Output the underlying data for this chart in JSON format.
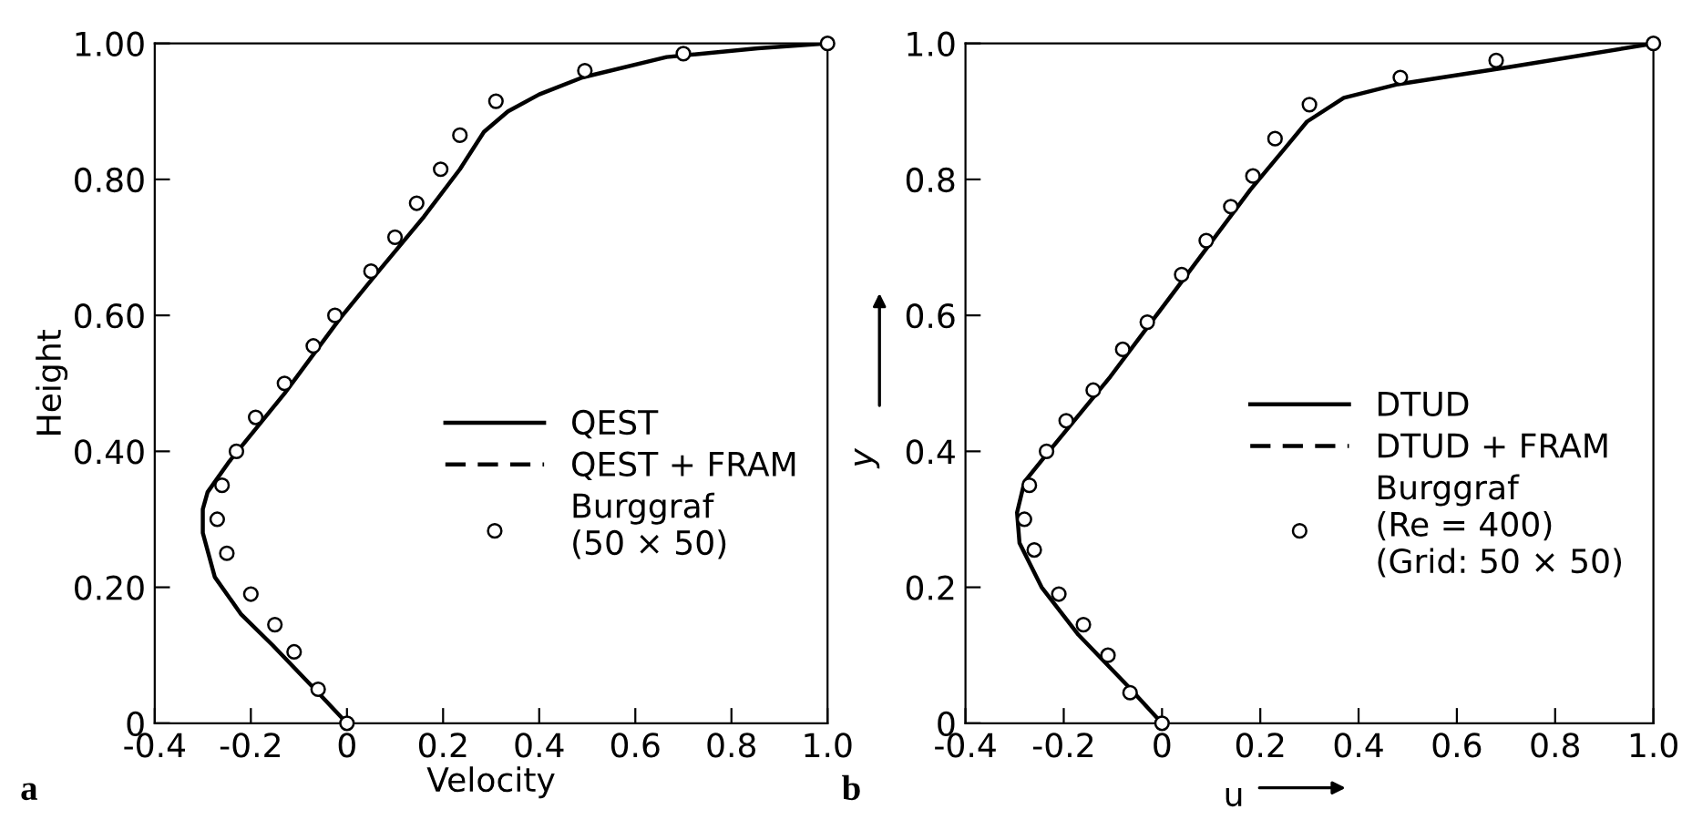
{
  "chart_data": [
    {
      "type": "line",
      "xlabel": "Velocity",
      "ylabel": "Height",
      "annotations": [
        "a"
      ],
      "xlim": [
        -0.4,
        1.0
      ],
      "ylim": [
        0,
        1.0
      ],
      "xticks": [
        {
          "value": -0.4,
          "label": "-0.4"
        },
        {
          "value": -0.2,
          "label": "-0.2"
        },
        0,
        0.2,
        0.4,
        0.6,
        0.8,
        {
          "value": 1.0,
          "label": "1.0"
        }
      ],
      "yticks": [
        0,
        {
          "value": 0.2,
          "label": "0.20"
        },
        {
          "value": 0.4,
          "label": "0.40"
        },
        {
          "value": 0.6,
          "label": "0.60"
        },
        {
          "value": 0.8,
          "label": "0.80"
        },
        {
          "value": 1.0,
          "label": "1.00"
        }
      ],
      "grid": false,
      "legend": "right",
      "series": [
        {
          "name": "QEST",
          "color": "#000000",
          "line_style": "solid",
          "marker": "none",
          "x": [
            0,
            -0.06,
            -0.155,
            -0.22,
            -0.275,
            -0.3,
            -0.3,
            -0.29,
            -0.245,
            -0.13,
            -0.015,
            0.06,
            0.16,
            0.235,
            0.285,
            0.335,
            0.4,
            0.49,
            0.665,
            0.855,
            1.0
          ],
          "values": [
            0,
            0.045,
            0.115,
            0.16,
            0.215,
            0.28,
            0.315,
            0.34,
            0.385,
            0.485,
            0.595,
            0.66,
            0.745,
            0.815,
            0.87,
            0.9,
            0.925,
            0.95,
            0.98,
            0.993,
            1.0
          ]
        },
        {
          "name": "QEST + FRAM",
          "color": "#000000",
          "line_style": "dashed",
          "marker": "none"
        },
        {
          "name": "Burggraf\n(50 × 50)",
          "type": "scatter",
          "color": "#000000",
          "marker": "circle",
          "x": [
            0,
            -0.06,
            -0.11,
            -0.15,
            -0.2,
            -0.25,
            -0.27,
            -0.26,
            -0.23,
            -0.19,
            -0.13,
            -0.07,
            -0.025,
            0.05,
            0.1,
            0.145,
            0.195,
            0.235,
            0.31,
            0.495,
            0.7,
            1.0
          ],
          "values": [
            0,
            0.05,
            0.105,
            0.145,
            0.19,
            0.25,
            0.3,
            0.35,
            0.4,
            0.45,
            0.5,
            0.555,
            0.6,
            0.665,
            0.715,
            0.765,
            0.815,
            0.865,
            0.915,
            0.96,
            0.985,
            1.0
          ]
        }
      ]
    },
    {
      "type": "line",
      "xlabel": "u",
      "ylabel": "y",
      "annotations": [
        "b"
      ],
      "xlim": [
        -0.4,
        1.0
      ],
      "ylim": [
        0,
        1.0
      ],
      "xticks": [
        {
          "value": -0.4,
          "label": "-0.4"
        },
        {
          "value": -0.2,
          "label": "-0.2"
        },
        0,
        0.2,
        0.4,
        0.6,
        0.8,
        {
          "value": 1.0,
          "label": "1.0"
        }
      ],
      "yticks": [
        0,
        0.2,
        0.4,
        0.6,
        0.8,
        {
          "value": 1.0,
          "label": "1.0"
        }
      ],
      "grid": false,
      "legend": "right",
      "series": [
        {
          "name": "DTUD",
          "color": "#000000",
          "line_style": "solid",
          "marker": "none",
          "x": [
            0,
            -0.07,
            -0.17,
            -0.245,
            -0.29,
            -0.295,
            -0.28,
            -0.23,
            -0.105,
            0.03,
            0.18,
            0.255,
            0.295,
            0.37,
            0.48,
            0.705,
            1.0
          ],
          "values": [
            0,
            0.055,
            0.13,
            0.2,
            0.265,
            0.31,
            0.355,
            0.4,
            0.51,
            0.64,
            0.785,
            0.85,
            0.885,
            0.92,
            0.94,
            0.965,
            1.0
          ]
        },
        {
          "name": "DTUD + FRAM",
          "color": "#000000",
          "line_style": "dashed",
          "marker": "none"
        },
        {
          "name": "Burggraf\n(Re = 400)\n(Grid: 50 × 50)",
          "type": "scatter",
          "color": "#000000",
          "marker": "circle",
          "x": [
            0,
            -0.065,
            -0.11,
            -0.16,
            -0.21,
            -0.26,
            -0.28,
            -0.27,
            -0.235,
            -0.195,
            -0.14,
            -0.08,
            -0.03,
            0.04,
            0.09,
            0.14,
            0.185,
            0.23,
            0.3,
            0.485,
            0.68,
            1.0
          ],
          "values": [
            0,
            0.045,
            0.1,
            0.145,
            0.19,
            0.255,
            0.3,
            0.35,
            0.4,
            0.445,
            0.49,
            0.55,
            0.59,
            0.66,
            0.71,
            0.76,
            0.805,
            0.86,
            0.91,
            0.95,
            0.975,
            1.0
          ]
        }
      ]
    }
  ]
}
